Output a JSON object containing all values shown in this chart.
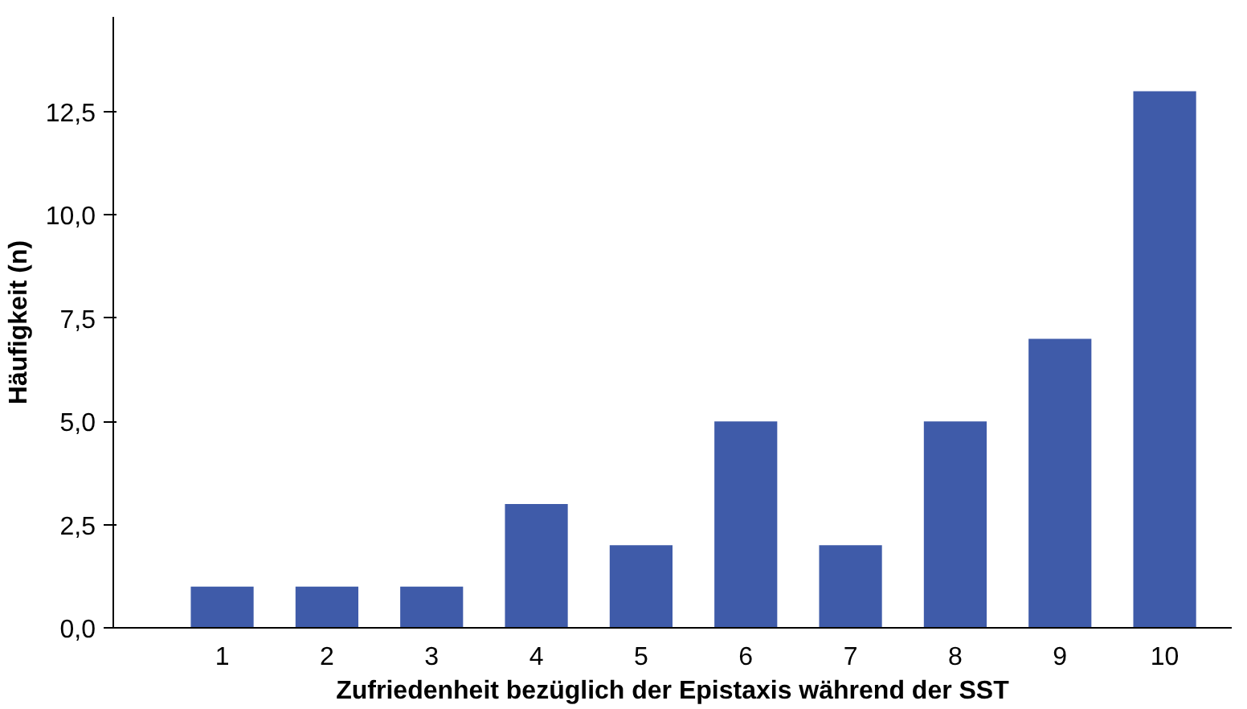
{
  "chart_data": {
    "type": "bar",
    "xlabel": "Zufriedenheit bezüglich der Epistaxis während der SST",
    "ylabel": "Häufigkeit (n)",
    "categories": [
      "1",
      "2",
      "3",
      "4",
      "5",
      "6",
      "7",
      "8",
      "9",
      "10"
    ],
    "values": [
      1,
      1,
      1,
      3,
      2,
      5,
      2,
      5,
      7,
      13
    ],
    "color": "#3f5ba9",
    "ylim": [
      0,
      14.8
    ],
    "yticks": [
      {
        "value": 0,
        "label": "0,0"
      },
      {
        "value": 2.5,
        "label": "2,5"
      },
      {
        "value": 5,
        "label": "5,0"
      },
      {
        "value": 7.5,
        "label": "7,5"
      },
      {
        "value": 10,
        "label": "10,0"
      },
      {
        "value": 12.5,
        "label": "12,5"
      }
    ],
    "grid": false
  }
}
